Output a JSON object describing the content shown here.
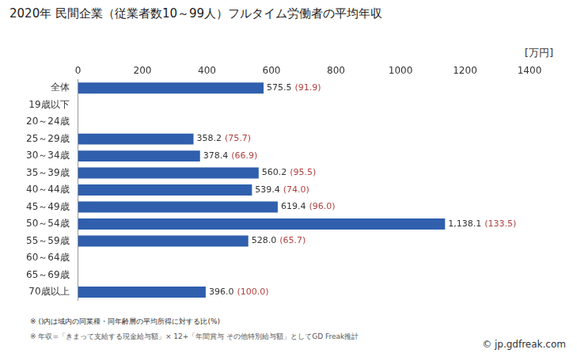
{
  "chart_data": {
    "type": "bar",
    "orientation": "horizontal",
    "title": "2020年 民間企業（従業者数10～99人）フルタイム労働者の平均年収",
    "xlabel": "[万円]",
    "categories": [
      "全体",
      "19歳以下",
      "20～24歳",
      "25～29歳",
      "30～34歳",
      "35～39歳",
      "40～44歳",
      "45～49歳",
      "50～54歳",
      "55～59歳",
      "60～64歳",
      "65～69歳",
      "70歳以上"
    ],
    "values": [
      575.5,
      null,
      null,
      358.2,
      378.4,
      560.2,
      539.4,
      619.4,
      1138.1,
      528.0,
      null,
      null,
      396.0
    ],
    "value_labels": [
      "575.5",
      null,
      null,
      "358.2",
      "378.4",
      "560.2",
      "539.4",
      "619.4",
      "1,138.1",
      "528.0",
      null,
      null,
      "396.0"
    ],
    "ratios": [
      91.9,
      null,
      null,
      75.7,
      66.9,
      95.5,
      74.0,
      96.0,
      133.5,
      65.7,
      null,
      null,
      100.0
    ],
    "ratio_labels": [
      "(91.9)",
      null,
      null,
      "(75.7)",
      "(66.9)",
      "(95.5)",
      "(74.0)",
      "(96.0)",
      "(133.5)",
      "(65.7)",
      null,
      null,
      "(100.0)"
    ],
    "color": "#2f5fad",
    "xlim": [
      0,
      1400
    ],
    "xticks": [
      0,
      200,
      400,
      600,
      800,
      1000,
      1200,
      1400
    ],
    "grid": false,
    "data_labels": true,
    "annotations": [
      "※ ()内は域内の同業種・同年齢層の平均所得に対する比(%)",
      "※ 年収=「きまって支給する現金給与額」× 12+「年間賞与 その他特別給与額」としてGD Freak推計",
      "© jp.gdfreak.com"
    ]
  }
}
